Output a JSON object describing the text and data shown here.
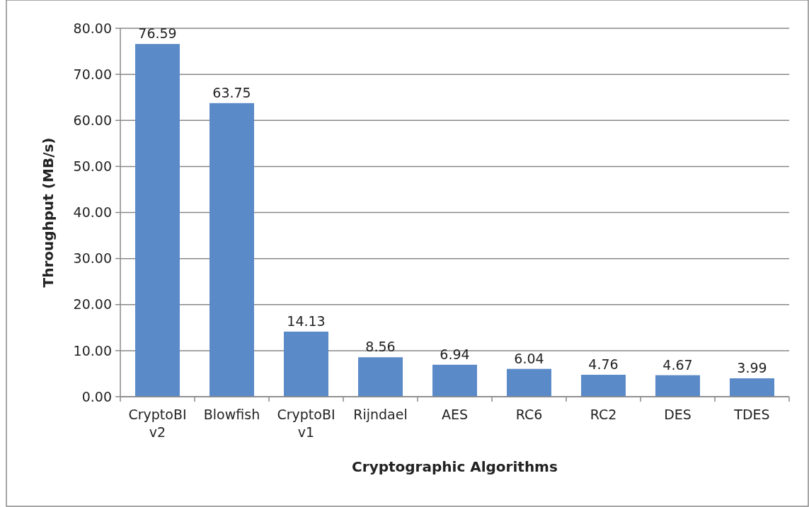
{
  "chart_data": {
    "type": "bar",
    "xlabel": "Cryptographic Algorithms",
    "ylabel": "Throughput (MB/s)",
    "categories": [
      "CryptoBI v2",
      "Blowfish",
      "CryptoBI v1",
      "Rijndael",
      "AES",
      "RC6",
      "RC2",
      "DES",
      "TDES"
    ],
    "values": [
      76.59,
      63.75,
      14.13,
      8.56,
      6.94,
      6.04,
      4.76,
      4.67,
      3.99
    ],
    "color": "#5b8ac9",
    "ylim": [
      0,
      80
    ],
    "yticks": [
      {
        "value": 0,
        "label": "0.00"
      },
      {
        "value": 10,
        "label": "10.00"
      },
      {
        "value": 20,
        "label": "20.00"
      },
      {
        "value": 30,
        "label": "30.00"
      },
      {
        "value": 40,
        "label": "40.00"
      },
      {
        "value": 50,
        "label": "50.00"
      },
      {
        "value": 60,
        "label": "60.00"
      },
      {
        "value": 70,
        "label": "70.00"
      },
      {
        "value": 80,
        "label": "80.00"
      }
    ],
    "grid": "y",
    "data_labels": true
  }
}
